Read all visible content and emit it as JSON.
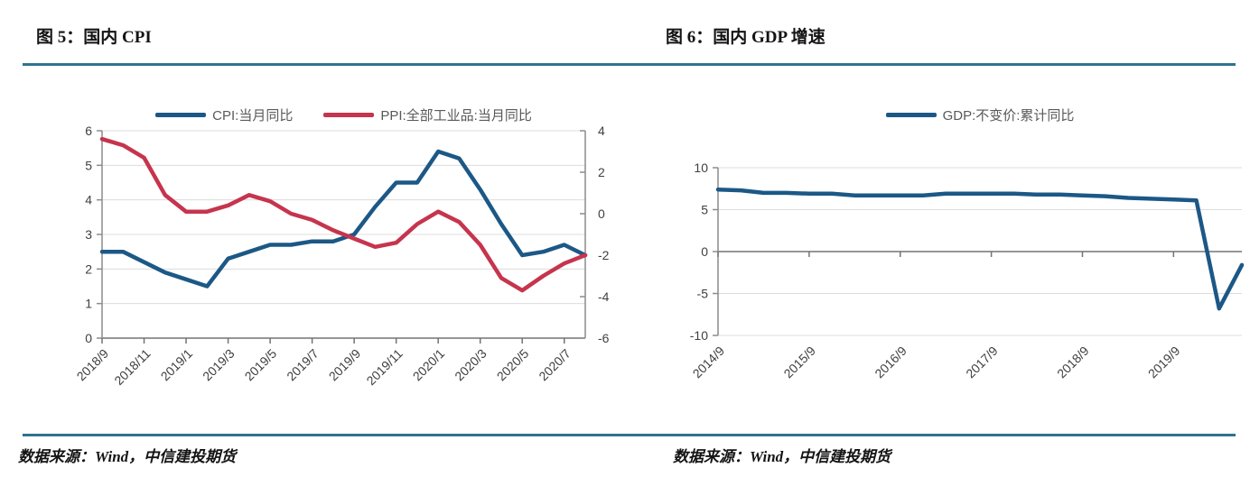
{
  "page": {
    "separator_color": "#2E7390",
    "grid_color": "#DCDCDC",
    "axis_color": "#8C8C8C",
    "baseline_color": "#737373",
    "tick_label_color": "#404040",
    "legend_text_color": "#595959"
  },
  "figure5": {
    "title": "图 5：国内 CPI",
    "source": "数据来源：Wind，中信建投期货"
  },
  "figure6": {
    "title": "图 6：国内 GDP 增速",
    "source": "数据来源：Wind，中信建投期货"
  },
  "chart_data": [
    {
      "type": "line",
      "title": "国内 CPI",
      "grid": true,
      "legend_position": "top",
      "x": [
        "2018/9",
        "2018/10",
        "2018/11",
        "2018/12",
        "2019/1",
        "2019/2",
        "2019/3",
        "2019/4",
        "2019/5",
        "2019/6",
        "2019/7",
        "2019/8",
        "2019/9",
        "2019/10",
        "2019/11",
        "2019/12",
        "2020/1",
        "2020/2",
        "2020/3",
        "2020/4",
        "2020/5",
        "2020/6",
        "2020/7",
        "2020/8"
      ],
      "xtick_labels": [
        "2018/9",
        "2018/11",
        "2019/1",
        "2019/3",
        "2019/5",
        "2019/7",
        "2019/9",
        "2019/11",
        "2020/1",
        "2020/3",
        "2020/5",
        "2020/7"
      ],
      "left_axis": {
        "min": 0,
        "max": 6,
        "step": 1
      },
      "right_axis": {
        "min": -6,
        "max": 4,
        "step": 2
      },
      "series": [
        {
          "name": "CPI:当月同比",
          "axis": "left",
          "color": "#1C5886",
          "values": [
            2.5,
            2.5,
            2.2,
            1.9,
            1.7,
            1.5,
            2.3,
            2.5,
            2.7,
            2.7,
            2.8,
            2.8,
            3.0,
            3.8,
            4.5,
            4.5,
            5.4,
            5.2,
            4.3,
            3.3,
            2.4,
            2.5,
            2.7,
            2.4
          ]
        },
        {
          "name": "PPI:全部工业品:当月同比",
          "axis": "right",
          "color": "#C6344D",
          "values": [
            3.6,
            3.3,
            2.7,
            0.9,
            0.1,
            0.1,
            0.4,
            0.9,
            0.6,
            0.0,
            -0.3,
            -0.8,
            -1.2,
            -1.6,
            -1.4,
            -0.5,
            0.1,
            -0.4,
            -1.5,
            -3.1,
            -3.7,
            -3.0,
            -2.4,
            -2.0
          ]
        }
      ]
    },
    {
      "type": "line",
      "title": "国内 GDP 增速",
      "grid": true,
      "legend_position": "top",
      "x": [
        "2014/9",
        "2014/12",
        "2015/3",
        "2015/6",
        "2015/9",
        "2015/12",
        "2016/3",
        "2016/6",
        "2016/9",
        "2016/12",
        "2017/3",
        "2017/6",
        "2017/9",
        "2017/12",
        "2018/3",
        "2018/6",
        "2018/9",
        "2018/12",
        "2019/3",
        "2019/6",
        "2019/9",
        "2019/12",
        "2020/3",
        "2020/6"
      ],
      "xtick_labels": [
        "2014/9",
        "2015/9",
        "2016/9",
        "2017/9",
        "2018/9",
        "2019/9"
      ],
      "left_axis": {
        "min": -10,
        "max": 10,
        "step": 5
      },
      "series": [
        {
          "name": "GDP:不变价:累计同比",
          "axis": "left",
          "color": "#1C5886",
          "values": [
            7.4,
            7.3,
            7.0,
            7.0,
            6.9,
            6.9,
            6.7,
            6.7,
            6.7,
            6.7,
            6.9,
            6.9,
            6.9,
            6.9,
            6.8,
            6.8,
            6.7,
            6.6,
            6.4,
            6.3,
            6.2,
            6.1,
            -6.8,
            -1.6
          ]
        }
      ]
    }
  ]
}
